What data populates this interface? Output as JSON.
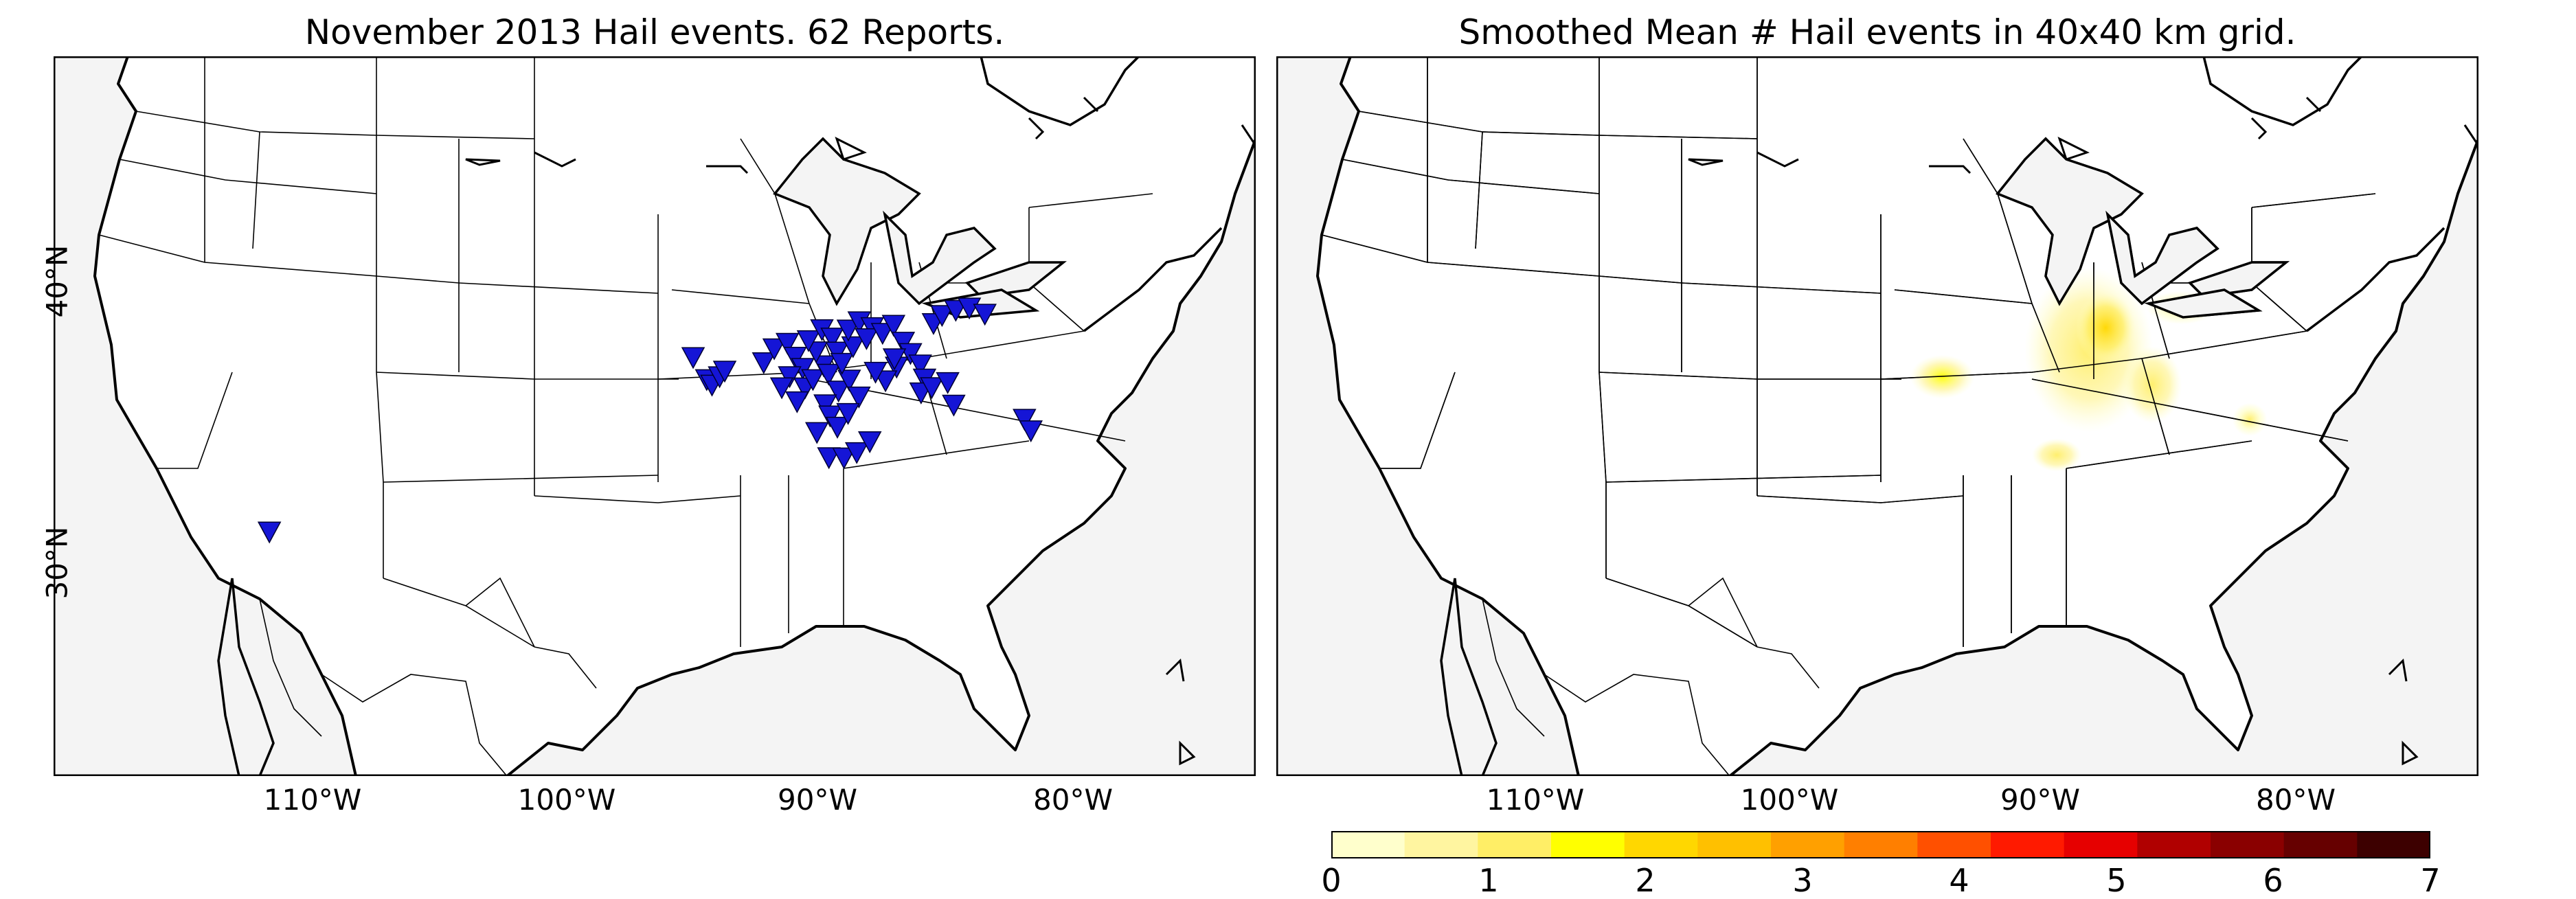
{
  "left_panel": {
    "title": "November 2013 Hail events. 62 Reports."
  },
  "right_panel": {
    "title": "Smoothed Mean # Hail events in 40x40 km grid."
  },
  "axes": {
    "lon_ticks": [
      {
        "value": -110,
        "label": "110°W"
      },
      {
        "value": -100,
        "label": "100°W"
      },
      {
        "value": -90,
        "label": "90°W"
      },
      {
        "value": -80,
        "label": "80°W"
      }
    ],
    "lat_ticks": [
      {
        "value": 40,
        "label": "40°N"
      },
      {
        "value": 30,
        "label": "30°N"
      }
    ]
  },
  "hail_reports": {
    "marker": "blue-triangle-down",
    "color": "#1515d6",
    "points": [
      [
        -115.0,
        32.6
      ],
      [
        -97.6,
        38.0
      ],
      [
        -97.1,
        37.2
      ],
      [
        -96.9,
        37.0
      ],
      [
        -96.6,
        37.3
      ],
      [
        -96.4,
        37.5
      ],
      [
        -94.9,
        37.8
      ],
      [
        -94.5,
        38.3
      ],
      [
        -94.0,
        38.5
      ],
      [
        -93.7,
        38.0
      ],
      [
        -93.4,
        37.6
      ],
      [
        -93.9,
        37.3
      ],
      [
        -94.2,
        36.9
      ],
      [
        -93.3,
        36.9
      ],
      [
        -93.0,
        37.2
      ],
      [
        -92.6,
        37.7
      ],
      [
        -92.9,
        38.2
      ],
      [
        -93.2,
        38.6
      ],
      [
        -92.7,
        39.0
      ],
      [
        -92.3,
        38.7
      ],
      [
        -92.1,
        38.2
      ],
      [
        -92.4,
        37.4
      ],
      [
        -92.0,
        36.8
      ],
      [
        -91.6,
        37.2
      ],
      [
        -91.9,
        37.8
      ],
      [
        -91.5,
        38.4
      ],
      [
        -91.7,
        39.0
      ],
      [
        -91.3,
        39.3
      ],
      [
        -90.8,
        39.1
      ],
      [
        -91.0,
        38.7
      ],
      [
        -91.2,
        36.6
      ],
      [
        -92.5,
        36.3
      ],
      [
        -92.3,
        35.9
      ],
      [
        -92.0,
        35.5
      ],
      [
        -91.6,
        36.0
      ],
      [
        -92.8,
        35.3
      ],
      [
        -92.3,
        34.4
      ],
      [
        -91.7,
        34.4
      ],
      [
        -91.2,
        34.6
      ],
      [
        -90.4,
        38.9
      ],
      [
        -90.0,
        39.2
      ],
      [
        -89.6,
        38.6
      ],
      [
        -89.3,
        38.2
      ],
      [
        -89.8,
        37.7
      ],
      [
        -90.2,
        37.2
      ],
      [
        -88.5,
        39.3
      ],
      [
        -88.2,
        39.6
      ],
      [
        -87.7,
        39.8
      ],
      [
        -87.2,
        39.9
      ],
      [
        -86.6,
        39.7
      ],
      [
        -88.9,
        37.8
      ],
      [
        -88.7,
        37.3
      ],
      [
        -88.8,
        36.8
      ],
      [
        -88.4,
        37.0
      ],
      [
        -87.8,
        37.2
      ],
      [
        -87.5,
        36.4
      ],
      [
        -84.7,
        36.0
      ],
      [
        -84.4,
        35.6
      ],
      [
        -93.6,
        36.4
      ],
      [
        -90.7,
        35.0
      ],
      [
        -89.9,
        38.0
      ],
      [
        -90.6,
        37.5
      ]
    ]
  },
  "smoothed_field": {
    "description_free": true,
    "blobs": [
      {
        "lon": -91.0,
        "lat": 38.3,
        "rx": 2.6,
        "ry": 3.0,
        "value": 0.6
      },
      {
        "lon": -90.4,
        "lat": 39.1,
        "rx": 1.2,
        "ry": 1.3,
        "value": 1.3
      },
      {
        "lon": -96.6,
        "lat": 37.3,
        "rx": 1.3,
        "ry": 0.8,
        "value": 0.9
      },
      {
        "lon": -88.5,
        "lat": 37.1,
        "rx": 1.2,
        "ry": 1.4,
        "value": 0.5
      },
      {
        "lon": -87.6,
        "lat": 39.9,
        "rx": 1.4,
        "ry": 0.6,
        "value": 0.4
      },
      {
        "lon": -84.6,
        "lat": 36.0,
        "rx": 0.7,
        "ry": 0.6,
        "value": 0.4
      },
      {
        "lon": -92.1,
        "lat": 34.5,
        "rx": 1.0,
        "ry": 0.6,
        "value": 0.5
      }
    ]
  },
  "colorbar": {
    "min": 0,
    "max": 7,
    "tick_labels": [
      "0",
      "1",
      "2",
      "3",
      "4",
      "5",
      "6",
      "7"
    ],
    "colors": [
      "#ffffcc",
      "#fff5a0",
      "#ffee66",
      "#ffff00",
      "#ffd700",
      "#ffc000",
      "#ffa000",
      "#ff7f00",
      "#ff5000",
      "#ff1a00",
      "#e60000",
      "#b00000",
      "#8a0000",
      "#660000",
      "#3d0000"
    ]
  },
  "map_style": {
    "land": "#ffffff",
    "water": "#f4f4f4",
    "coast": "#000000",
    "border": "#000000"
  }
}
